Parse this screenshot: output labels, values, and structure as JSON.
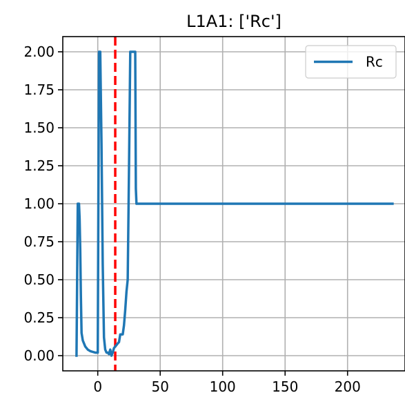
{
  "chart_data": {
    "type": "line",
    "title": "L1A1: ['Rc']",
    "xlabel": "",
    "ylabel": "",
    "xlim": [
      -28,
      246
    ],
    "ylim": [
      -0.1,
      2.1
    ],
    "xticks": [
      0,
      50,
      100,
      150,
      200
    ],
    "yticks": [
      0.0,
      0.25,
      0.5,
      0.75,
      1.0,
      1.25,
      1.5,
      1.75,
      2.0
    ],
    "xtick_labels": [
      "0",
      "50",
      "100",
      "150",
      "200"
    ],
    "ytick_labels": [
      "0.00",
      "0.25",
      "0.50",
      "0.75",
      "1.00",
      "1.25",
      "1.50",
      "1.75",
      "2.00"
    ],
    "grid": true,
    "legend_position": "top-right",
    "vline": {
      "x": 14,
      "style": "dashed",
      "color": "#ff0000"
    },
    "series": [
      {
        "name": "Rc",
        "color": "#1f77b4",
        "x": [
          -17,
          -16,
          -15,
          -14.5,
          -14,
          -13.5,
          -13,
          -12,
          -10,
          -8,
          -6,
          -4,
          -2,
          0,
          1,
          2,
          3,
          4,
          5,
          6,
          7,
          8,
          9,
          10,
          11,
          12,
          13,
          14,
          15,
          16,
          17,
          18,
          19,
          20,
          21,
          22,
          23,
          24,
          25,
          26,
          27,
          28,
          29,
          30,
          30.5,
          31,
          236
        ],
        "y": [
          0.0,
          1.0,
          1.0,
          0.9,
          0.7,
          0.4,
          0.15,
          0.1,
          0.06,
          0.04,
          0.03,
          0.025,
          0.02,
          0.02,
          2.0,
          2.0,
          1.4,
          0.6,
          0.12,
          0.04,
          0.02,
          0.02,
          0.01,
          0.04,
          0.0,
          0.02,
          0.05,
          0.06,
          0.07,
          0.08,
          0.09,
          0.14,
          0.14,
          0.14,
          0.2,
          0.3,
          0.42,
          0.5,
          1.2,
          2.0,
          2.0,
          2.0,
          2.0,
          2.0,
          1.1,
          1.0,
          1.0
        ]
      }
    ]
  }
}
